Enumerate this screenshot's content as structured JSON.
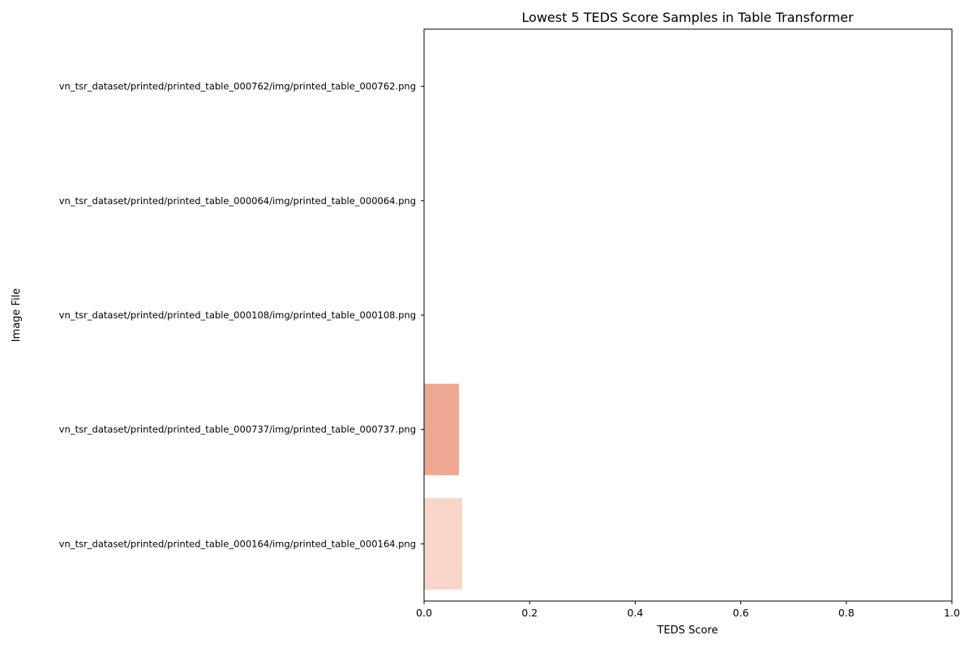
{
  "chart_data": {
    "type": "bar",
    "orientation": "horizontal",
    "title": "Lowest 5 TEDS Score Samples in Table Transformer",
    "xlabel": "TEDS Score",
    "ylabel": "Image File",
    "xlim": [
      0,
      1.0
    ],
    "x_ticks": [
      "0.0",
      "0.2",
      "0.4",
      "0.6",
      "0.8",
      "1.0"
    ],
    "grid": false,
    "categories": [
      "vn_tsr_dataset/printed/printed_table_000762/img/printed_table_000762.png",
      "vn_tsr_dataset/printed/printed_table_000064/img/printed_table_000064.png",
      "vn_tsr_dataset/printed/printed_table_000108/img/printed_table_000108.png",
      "vn_tsr_dataset/printed/printed_table_000737/img/printed_table_000737.png",
      "vn_tsr_dataset/printed/printed_table_000164/img/printed_table_000164.png"
    ],
    "values": [
      0.0,
      0.0,
      0.0,
      0.066,
      0.072
    ],
    "colors": [
      "#67000d",
      "#bb141a",
      "#f6553d",
      "#eea791",
      "#f7d6c9"
    ]
  }
}
